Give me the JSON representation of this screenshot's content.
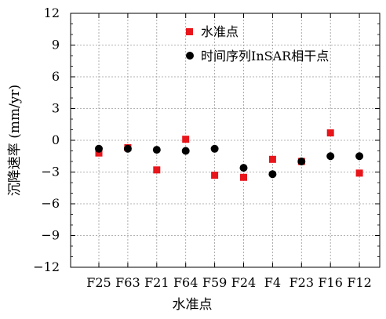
{
  "chart_data": {
    "type": "scatter",
    "categories": [
      "F25",
      "F63",
      "F21",
      "F64",
      "F59",
      "F24",
      "F4",
      "F23",
      "F16",
      "F12"
    ],
    "series": [
      {
        "name": "水准点",
        "marker": "square",
        "color": "#e8151b",
        "values": [
          -1.2,
          -0.7,
          -2.8,
          0.1,
          -3.3,
          -3.5,
          -1.8,
          -2.0,
          0.7,
          -3.1
        ]
      },
      {
        "name": "时间序列InSAR相干点",
        "marker": "circle",
        "color": "#000000",
        "values": [
          -0.8,
          -0.8,
          -0.9,
          -1.0,
          -0.8,
          -2.6,
          -3.2,
          -2.0,
          -1.5,
          -1.5
        ]
      }
    ],
    "xlabel": "水准点",
    "ylabel": "沉降速率 (mm/yr)",
    "ylim": [
      -12,
      12
    ],
    "yticks": [
      "12",
      "9",
      "6",
      "3",
      "0",
      "−3",
      "−6",
      "−9",
      "−12"
    ],
    "grid": true,
    "legend_position": "top-right"
  }
}
